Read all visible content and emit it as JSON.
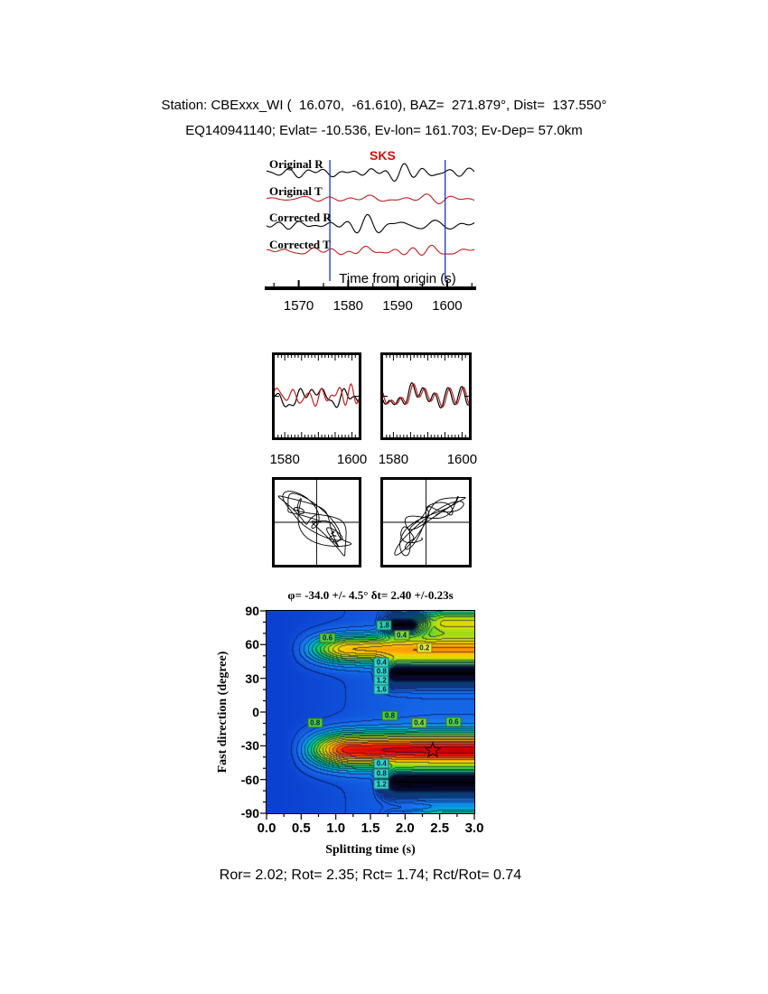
{
  "header": {
    "line1": "Station: CBExxx_WI (  16.070,  -61.610), BAZ=  271.879°, Dist=  137.550°",
    "line2": "EQ140941140; Evlat= -10.536, Ev-lon= 161.703; Ev-Dep= 57.0km"
  },
  "waveform_panel": {
    "traces": [
      {
        "label": "Original R",
        "color": "#000000"
      },
      {
        "label": "Original T",
        "color": "#bb2222"
      },
      {
        "label": "Corrected R",
        "color": "#000000"
      },
      {
        "label": "Corrected T",
        "color": "#bb2222"
      }
    ],
    "phase_label": "SKS",
    "phase_color": "#cc1111",
    "window_color": "#2233bb",
    "axis_label": "Time from origin (s)",
    "tick_labels": [
      "1570",
      "1580",
      "1590",
      "1600"
    ],
    "tick_values": [
      1570,
      1580,
      1590,
      1600
    ],
    "time_range": [
      1563.5,
      1605.5
    ],
    "window": [
      1576.3,
      1599.6
    ]
  },
  "zoom_panels": {
    "left_ticks": [
      "1580",
      "1600"
    ],
    "right_ticks": [
      "1580",
      "1600"
    ],
    "tick_values": [
      1580,
      1600
    ],
    "time_range": [
      1577,
      1602
    ]
  },
  "contour": {
    "title": "φ= -34.0 +/- 4.5° δt= 2.40 +/-0.23s",
    "ylabel": "Fast direction (degree)",
    "xlabel": "Splitting time (s)",
    "yticks": [
      "90",
      "60",
      "30",
      "0",
      "-30",
      "-60",
      "-90"
    ],
    "xticks": [
      "0.0",
      "0.5",
      "1.0",
      "1.5",
      "2.0",
      "2.5",
      "3.0"
    ],
    "best": {
      "dt": 2.4,
      "phi": -34
    },
    "star_color": "#dd0000",
    "labels": [
      {
        "value": "0.6",
        "dt": 0.88,
        "phi": 66,
        "bg": "#57c93f"
      },
      {
        "value": "1.8",
        "dt": 1.7,
        "phi": 77,
        "bg": "#2fc9a8"
      },
      {
        "value": "0.4",
        "dt": 1.95,
        "phi": 68,
        "bg": "#7ed63e"
      },
      {
        "value": "0.2",
        "dt": 2.28,
        "phi": 57,
        "bg": "#eeea38"
      },
      {
        "value": "0.4",
        "dt": 1.66,
        "phi": 44,
        "bg": "#36d2c4"
      },
      {
        "value": "0.8",
        "dt": 1.66,
        "phi": 36,
        "bg": "#36d2c4"
      },
      {
        "value": "1.2",
        "dt": 1.66,
        "phi": 28,
        "bg": "#36d2c4"
      },
      {
        "value": "1.6",
        "dt": 1.66,
        "phi": 20,
        "bg": "#36d2c4"
      },
      {
        "value": "0.8",
        "dt": 0.7,
        "phi": -10,
        "bg": "#4cc93c"
      },
      {
        "value": "0.8",
        "dt": 1.78,
        "phi": -3,
        "bg": "#4cc93c"
      },
      {
        "value": "0.4",
        "dt": 2.2,
        "phi": -10,
        "bg": "#7ed63e"
      },
      {
        "value": "0.6",
        "dt": 2.7,
        "phi": -9,
        "bg": "#5ad146"
      },
      {
        "value": "0.4",
        "dt": 1.66,
        "phi": -46,
        "bg": "#36d2c4"
      },
      {
        "value": "0.8",
        "dt": 1.66,
        "phi": -55,
        "bg": "#36d2c4"
      },
      {
        "value": "1.2",
        "dt": 1.66,
        "phi": -64,
        "bg": "#36d2c4"
      }
    ]
  },
  "footer": {
    "stats": "Ror= 2.02; Rot= 2.35; Rct= 1.74; Rct/Rot= 0.74"
  },
  "chart_data": [
    {
      "type": "line",
      "panel": "waveforms",
      "xlabel": "Time from origin (s)",
      "x_range": [
        1563.5,
        1605.5
      ],
      "xticks": [
        1570,
        1580,
        1590,
        1600
      ],
      "window_start": 1576.3,
      "window_end": 1599.6,
      "phase_label": "SKS",
      "series": [
        {
          "name": "Original R",
          "color": "#000000"
        },
        {
          "name": "Original T",
          "color": "#bb2222"
        },
        {
          "name": "Corrected R",
          "color": "#000000"
        },
        {
          "name": "Corrected T",
          "color": "#bb2222"
        }
      ]
    },
    {
      "type": "line",
      "panel": "window-zoom-left",
      "x_range": [
        1577,
        1602
      ],
      "xticks": [
        1580,
        1600
      ],
      "series": [
        {
          "name": "component-1",
          "color": "#000000"
        },
        {
          "name": "component-2",
          "color": "#bb2222"
        }
      ]
    },
    {
      "type": "line",
      "panel": "window-zoom-right",
      "x_range": [
        1577,
        1602
      ],
      "xticks": [
        1580,
        1600
      ],
      "series": [
        {
          "name": "component-1",
          "color": "#000000"
        },
        {
          "name": "component-2",
          "color": "#bb2222"
        }
      ]
    },
    {
      "type": "scatter",
      "panel": "particle-motion-left",
      "note": "elliptical particle motion, NW-SE elongation, crosshair axes"
    },
    {
      "type": "scatter",
      "panel": "particle-motion-right",
      "note": "elliptical particle motion, NE-SW elongation, crosshair axes"
    },
    {
      "type": "heatmap",
      "panel": "splitting-misfit-surface",
      "title": "φ= -34.0 +/- 4.5° δt= 2.40 +/-0.23s",
      "xlabel": "Splitting time (s)",
      "ylabel": "Fast direction (degree)",
      "xlim": [
        0,
        3
      ],
      "ylim": [
        -90,
        90
      ],
      "xticks": [
        0.0,
        0.5,
        1.0,
        1.5,
        2.0,
        2.5,
        3.0
      ],
      "yticks": [
        90,
        60,
        30,
        0,
        -30,
        -60,
        -90
      ],
      "best_fit": {
        "phi_deg": -34.0,
        "phi_err_deg": 4.5,
        "dt_s": 2.4,
        "dt_err_s": 0.23
      },
      "contour_levels_labeled": [
        0.2,
        0.4,
        0.6,
        0.8,
        1.2,
        1.6,
        1.8
      ],
      "colormap": "blue-green-yellow-orange-red with black extrema blobs",
      "warm_bands_phi": [
        -34,
        56
      ],
      "black_blobs": [
        {
          "phi": 34,
          "dt_from": 1.6
        },
        {
          "phi": -63,
          "dt_from": 1.6
        }
      ]
    }
  ],
  "footer_stats": {
    "Ror": 2.02,
    "Rot": 2.35,
    "Rct": 1.74,
    "Rct_over_Rot": 0.74
  }
}
